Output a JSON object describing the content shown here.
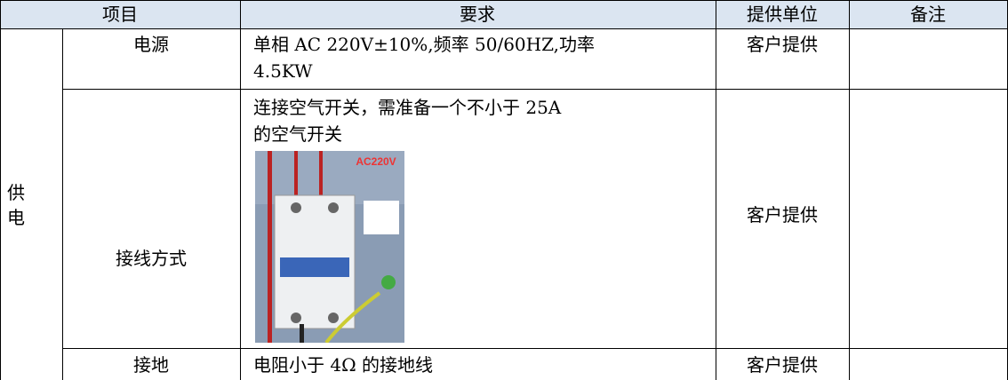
{
  "header": [
    "项目",
    "要求",
    "提供单位",
    "备注"
  ],
  "group": [
    "供",
    "电"
  ],
  "rows": [
    {
      "item": "电源",
      "requirement": [
        "单相 AC 220V±10%,频率 50/60HZ,功率",
        "4.5KW"
      ],
      "provider": "客户提供"
    },
    {
      "item": "接线方式",
      "requirement": [
        "连接空气开关，需准备一个不小于 25A",
        "的空气开关"
      ],
      "image_label": "AC220V",
      "provider": "客户提供"
    },
    {
      "item": "接地",
      "requirement": [
        "电阻小于 4Ω 的接地线"
      ],
      "provider": "客户提供"
    }
  ]
}
